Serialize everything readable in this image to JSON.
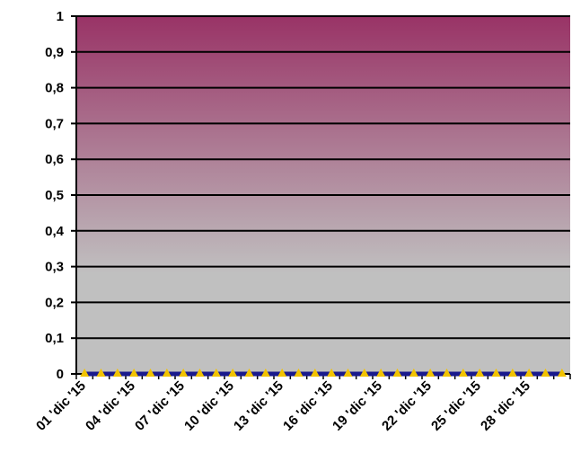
{
  "chart_data": {
    "type": "line",
    "title": "",
    "xlabel": "",
    "ylabel": "",
    "ylim": [
      0,
      1
    ],
    "y_ticks": [
      "0",
      "0,1",
      "0,2",
      "0,3",
      "0,4",
      "0,5",
      "0,6",
      "0,7",
      "0,8",
      "0,9",
      "1"
    ],
    "y_tick_values": [
      0,
      0.1,
      0.2,
      0.3,
      0.4,
      0.5,
      0.6,
      0.7,
      0.8,
      0.9,
      1
    ],
    "x_tick_labels": [
      "01 'dic '15",
      "04 'dic '15",
      "07 'dic '15",
      "10 'dic '15",
      "13 'dic '15",
      "16 'dic '15",
      "19 'dic '15",
      "22 'dic '15",
      "25 'dic '15",
      "28 'dic '15"
    ],
    "x": [
      "01 'dic '15",
      "02 'dic '15",
      "03 'dic '15",
      "04 'dic '15",
      "05 'dic '15",
      "06 'dic '15",
      "07 'dic '15",
      "08 'dic '15",
      "09 'dic '15",
      "10 'dic '15",
      "11 'dic '15",
      "12 'dic '15",
      "13 'dic '15",
      "14 'dic '15",
      "15 'dic '15",
      "16 'dic '15",
      "17 'dic '15",
      "18 'dic '15",
      "19 'dic '15",
      "20 'dic '15",
      "21 'dic '15",
      "22 'dic '15",
      "23 'dic '15",
      "24 'dic '15",
      "25 'dic '15",
      "26 'dic '15",
      "27 'dic '15",
      "28 'dic '15",
      "29 'dic '15",
      "30 'dic '15"
    ],
    "series": [
      {
        "values": [
          0,
          0,
          0,
          0,
          0,
          0,
          0,
          0,
          0,
          0,
          0,
          0,
          0,
          0,
          0,
          0,
          0,
          0,
          0,
          0,
          0,
          0,
          0,
          0,
          0,
          0,
          0,
          0,
          0,
          0
        ],
        "line_color": "#1a1a8c",
        "marker": "triangle",
        "marker_color": "#f2c300"
      }
    ],
    "grid": true,
    "legend": "none",
    "background_gradient": [
      "#993366",
      "#c0c0c0"
    ]
  }
}
